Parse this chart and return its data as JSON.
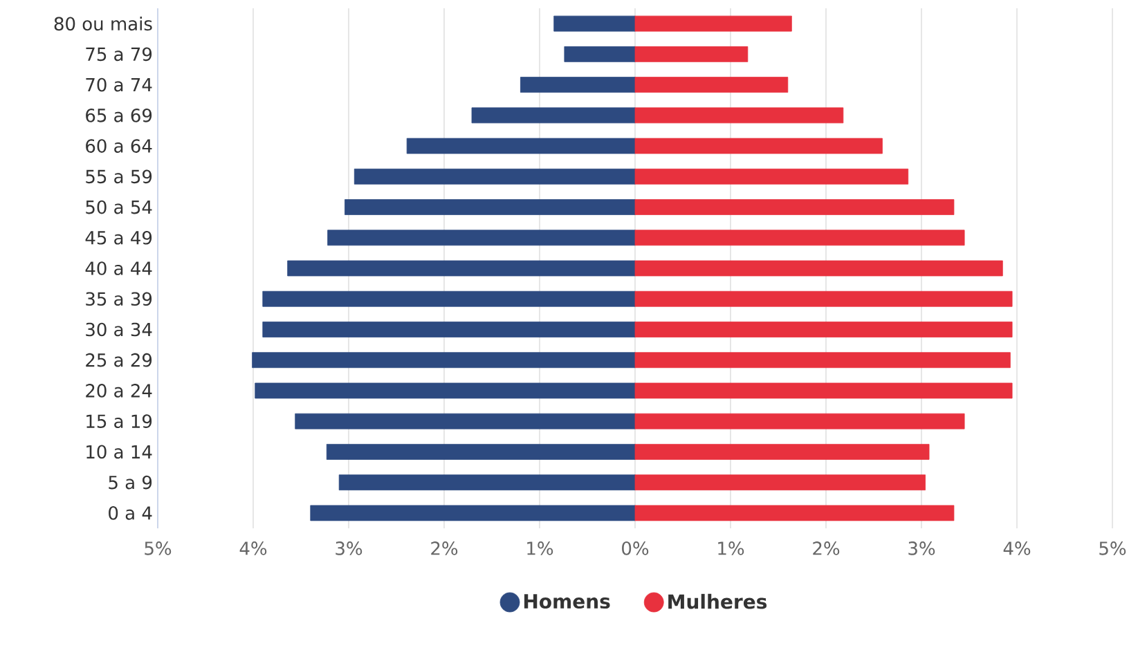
{
  "chart_data": {
    "type": "bar",
    "orientation": "horizontal",
    "stacked": true,
    "categories": [
      "80 ou mais",
      "75 a 79",
      "70 a 74",
      "65 a 69",
      "60 a 64",
      "55 a 59",
      "50 a 54",
      "45 a 49",
      "40 a 44",
      "35 a 39",
      "30 a 34",
      "25 a 29",
      "20 a 24",
      "15 a 19",
      "10 a 14",
      "5 a 9",
      "0 a 4"
    ],
    "series": [
      {
        "name": "Homens",
        "color": "#2d4a80",
        "values": [
          -0.85,
          -0.74,
          -1.2,
          -1.71,
          -2.39,
          -2.94,
          -3.04,
          -3.22,
          -3.64,
          -3.9,
          -3.9,
          -4.01,
          -3.98,
          -3.56,
          -3.23,
          -3.1,
          -3.4
        ]
      },
      {
        "name": "Mulheres",
        "color": "#e8313e",
        "values": [
          1.64,
          1.18,
          1.6,
          2.18,
          2.59,
          2.86,
          3.34,
          3.45,
          3.85,
          3.95,
          3.95,
          3.93,
          3.95,
          3.45,
          3.08,
          3.04,
          3.34
        ]
      }
    ],
    "xlim": [
      -5,
      5
    ],
    "xticks": [
      {
        "value": -5,
        "label": "5%"
      },
      {
        "value": -4,
        "label": "4%"
      },
      {
        "value": -3,
        "label": "3%"
      },
      {
        "value": -2,
        "label": "2%"
      },
      {
        "value": -1,
        "label": "1%"
      },
      {
        "value": 0,
        "label": "0%"
      },
      {
        "value": 1,
        "label": "1%"
      },
      {
        "value": 2,
        "label": "2%"
      },
      {
        "value": 3,
        "label": "3%"
      },
      {
        "value": 4,
        "label": "4%"
      },
      {
        "value": 5,
        "label": "5%"
      }
    ],
    "grid": "x",
    "legend": "bottom"
  }
}
